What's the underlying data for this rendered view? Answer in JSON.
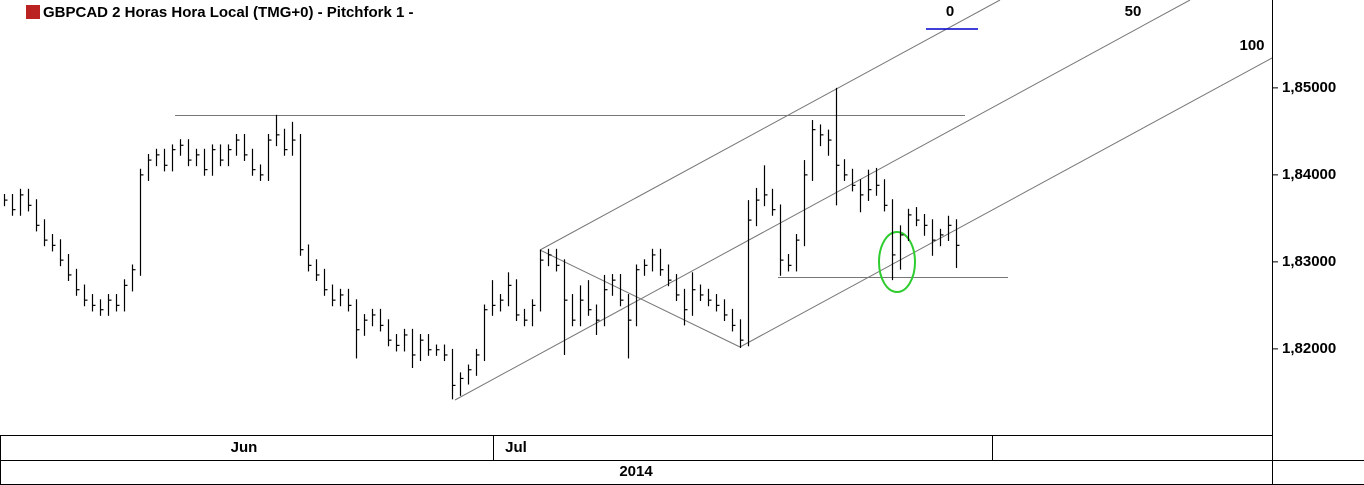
{
  "chart_data": {
    "type": "hlc",
    "title": "GBPCAD 2 Horas Hora Local (TMG+0)  -  Pitchfork 1 -",
    "pitchfork_labels": [
      "0",
      "50",
      "100"
    ],
    "x_year_label": "2014",
    "color": "#000000",
    "categories": [
      null,
      null,
      null,
      null,
      null,
      null,
      null,
      null,
      null,
      null,
      null,
      null,
      null,
      null,
      null,
      null,
      null,
      null,
      null,
      null,
      null,
      null,
      null,
      null,
      null,
      null,
      null,
      null,
      null,
      null,
      "Jun",
      null,
      null,
      null,
      null,
      null,
      null,
      null,
      null,
      null,
      null,
      null,
      null,
      null,
      null,
      null,
      null,
      null,
      null,
      null,
      null,
      null,
      null,
      null,
      null,
      null,
      null,
      null,
      null,
      null,
      null,
      null,
      null,
      null,
      "Jul",
      null,
      null,
      null,
      null,
      null,
      null,
      null,
      null,
      null,
      null,
      null,
      null,
      null,
      null,
      null,
      null,
      null,
      null,
      null,
      null,
      null,
      null,
      null,
      null,
      null,
      null,
      null,
      null,
      null,
      null,
      null,
      null,
      null,
      null,
      null,
      null,
      null,
      null,
      null,
      null,
      null,
      null,
      null,
      null,
      null,
      null,
      null,
      null,
      null,
      null,
      null,
      null,
      null,
      null,
      null
    ],
    "high": [
      1.8378,
      1.8378,
      1.8384,
      1.8384,
      1.8372,
      1.8349,
      1.8332,
      1.8326,
      1.8309,
      1.8292,
      1.8274,
      1.8263,
      1.8257,
      1.8263,
      1.8263,
      1.828,
      1.8297,
      1.8407,
      1.8424,
      1.843,
      1.843,
      1.8435,
      1.8441,
      1.8441,
      1.843,
      1.843,
      1.8435,
      1.8435,
      1.8435,
      1.8447,
      1.8447,
      1.843,
      1.8412,
      1.8447,
      1.8469,
      1.8453,
      1.8461,
      1.8447,
      1.832,
      1.8303,
      1.8292,
      1.8274,
      1.8269,
      1.8269,
      1.8257,
      1.824,
      1.8246,
      1.8246,
      1.8234,
      1.8217,
      1.8223,
      1.8223,
      1.8217,
      1.8217,
      1.8205,
      1.8205,
      1.82,
      1.8173,
      1.8182,
      1.82,
      1.8251,
      1.8279,
      1.8263,
      1.8288,
      1.828,
      1.8246,
      1.8257,
      1.8314,
      1.8315,
      1.8315,
      1.8303,
      1.8263,
      1.8273,
      1.8279,
      1.8251,
      1.8285,
      1.8286,
      1.8286,
      1.8263,
      1.8297,
      1.8303,
      1.8315,
      1.8315,
      1.8297,
      1.8286,
      1.8269,
      1.8288,
      1.8274,
      1.8269,
      1.8263,
      1.8257,
      1.8246,
      1.8234,
      1.8371,
      1.8385,
      1.8411,
      1.8384,
      1.8366,
      1.8309,
      1.8332,
      1.8417,
      1.8463,
      1.8458,
      1.8452,
      1.85,
      1.8418,
      1.8407,
      1.8395,
      1.8406,
      1.8408,
      1.8395,
      1.8372,
      1.8342,
      1.8361,
      1.8363,
      1.8355,
      1.8349,
      1.8338,
      1.8353,
      1.8349
    ],
    "low": [
      1.8364,
      1.8353,
      1.8353,
      1.8358,
      1.8335,
      1.8318,
      1.8312,
      1.8295,
      1.8278,
      1.8261,
      1.8249,
      1.8243,
      1.8238,
      1.8238,
      1.8243,
      1.8243,
      1.8266,
      1.8284,
      1.8393,
      1.841,
      1.8404,
      1.8404,
      1.8422,
      1.841,
      1.841,
      1.8399,
      1.8399,
      1.841,
      1.841,
      1.8422,
      1.8416,
      1.8399,
      1.8393,
      1.8393,
      1.8433,
      1.8422,
      1.8422,
      1.8307,
      1.8289,
      1.8278,
      1.8261,
      1.8249,
      1.8249,
      1.8243,
      1.8189,
      1.8215,
      1.8226,
      1.822,
      1.8203,
      1.8197,
      1.8197,
      1.8178,
      1.8186,
      1.8192,
      1.8192,
      1.8186,
      1.8142,
      1.8146,
      1.8159,
      1.8169,
      1.8186,
      1.8238,
      1.8243,
      1.8249,
      1.8232,
      1.8226,
      1.8226,
      1.8243,
      1.8295,
      1.8289,
      1.8193,
      1.8226,
      1.8226,
      1.8238,
      1.8216,
      1.8226,
      1.8261,
      1.8249,
      1.8189,
      1.8226,
      1.8284,
      1.8289,
      1.8284,
      1.8272,
      1.8255,
      1.8227,
      1.8238,
      1.8255,
      1.8249,
      1.8243,
      1.8232,
      1.822,
      1.8201,
      1.8203,
      1.8341,
      1.8364,
      1.8353,
      1.8284,
      1.8289,
      1.8289,
      1.8318,
      1.8393,
      1.8433,
      1.8422,
      1.8365,
      1.8393,
      1.8381,
      1.8357,
      1.837,
      1.8376,
      1.8358,
      1.8279,
      1.8291,
      1.8324,
      1.8341,
      1.833,
      1.8307,
      1.8318,
      1.8324,
      1.8293
    ],
    "close": [
      1.8371,
      1.836,
      1.8377,
      1.8365,
      1.8342,
      1.8325,
      1.8319,
      1.8302,
      1.8285,
      1.8268,
      1.8256,
      1.825,
      1.8245,
      1.8256,
      1.825,
      1.8273,
      1.8291,
      1.84,
      1.8417,
      1.8423,
      1.8411,
      1.8429,
      1.8434,
      1.8417,
      1.8423,
      1.8406,
      1.8429,
      1.8417,
      1.8429,
      1.844,
      1.8423,
      1.8406,
      1.84,
      1.844,
      1.8446,
      1.8429,
      1.844,
      1.8314,
      1.8296,
      1.8285,
      1.8268,
      1.8256,
      1.8262,
      1.825,
      1.8222,
      1.8233,
      1.8239,
      1.8227,
      1.821,
      1.8204,
      1.8216,
      1.8193,
      1.821,
      1.8199,
      1.8199,
      1.8193,
      1.8158,
      1.8166,
      1.8176,
      1.8193,
      1.8245,
      1.825,
      1.8256,
      1.8273,
      1.8239,
      1.8233,
      1.825,
      1.8302,
      1.8308,
      1.8296,
      1.8256,
      1.8233,
      1.8256,
      1.8245,
      1.8233,
      1.8268,
      1.8279,
      1.8256,
      1.8233,
      1.8291,
      1.8296,
      1.8308,
      1.8291,
      1.8279,
      1.8262,
      1.8245,
      1.8268,
      1.8262,
      1.8256,
      1.825,
      1.8239,
      1.8227,
      1.821,
      1.8348,
      1.8371,
      1.8377,
      1.836,
      1.8302,
      1.8296,
      1.8325,
      1.84,
      1.8452,
      1.8446,
      1.844,
      1.8411,
      1.84,
      1.8388,
      1.8377,
      1.8383,
      1.8388,
      1.8365,
      1.8308,
      1.8331,
      1.8354,
      1.8348,
      1.8342,
      1.8325,
      1.8331,
      1.8342,
      1.8319
    ],
    "ylim": [
      1.8101,
      1.8601
    ],
    "yticks": [
      {
        "value": 1.82,
        "label": "1,82000"
      },
      {
        "value": 1.83,
        "label": "1,83000"
      },
      {
        "value": 1.84,
        "label": "1,84000"
      },
      {
        "value": 1.85,
        "label": "1,85000"
      }
    ]
  }
}
